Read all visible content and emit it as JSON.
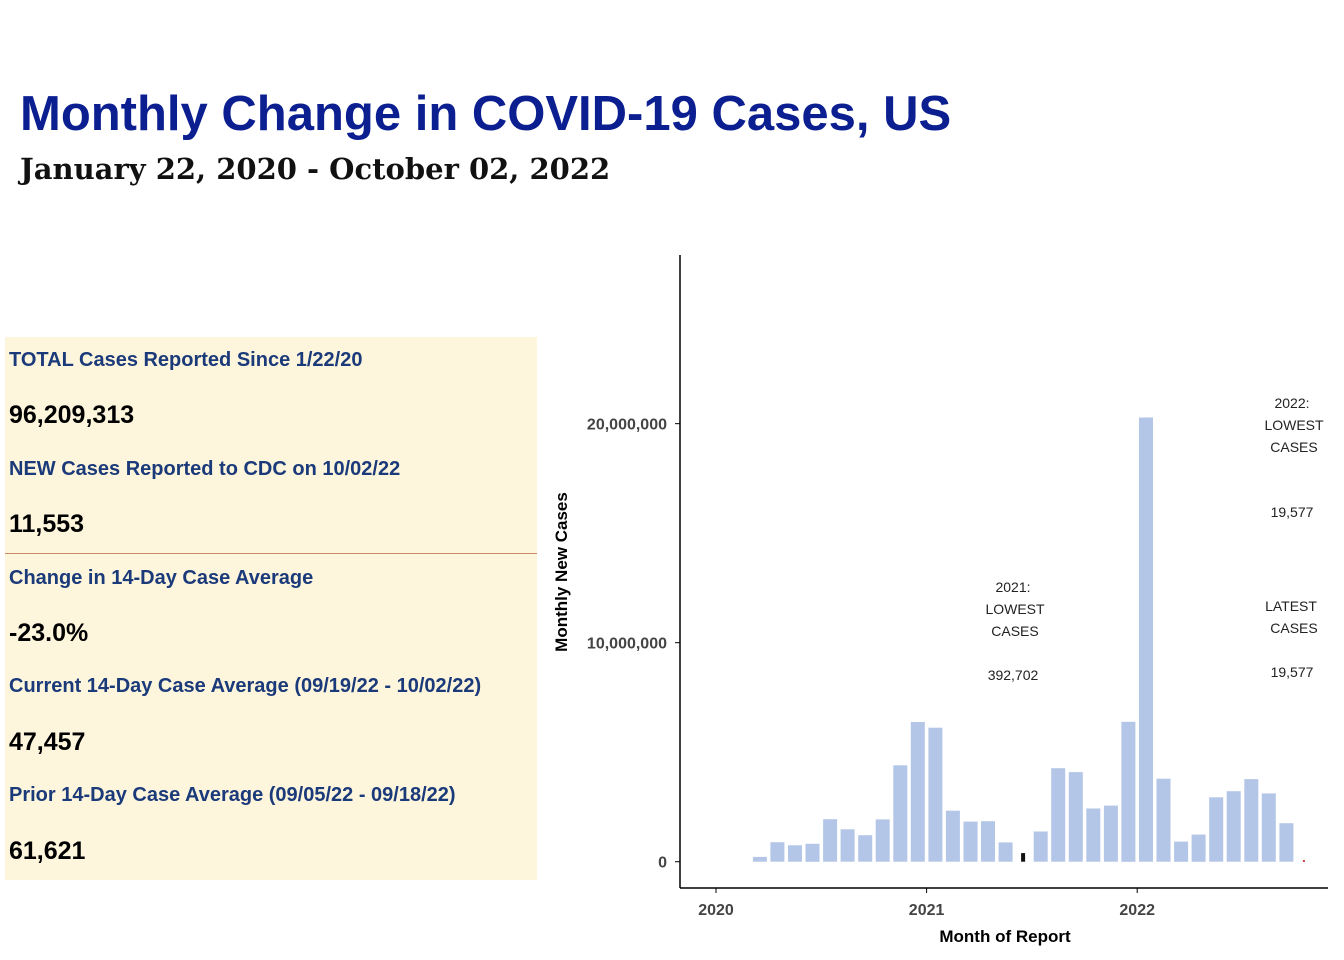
{
  "header": {
    "title": "Monthly Change in COVID-19 Cases, US",
    "subtitle": "January 22, 2020 - October 02, 2022"
  },
  "stats": {
    "total_label": "TOTAL Cases Reported Since 1/22/20",
    "total_value": "96,209,313",
    "new_label": "NEW Cases Reported to CDC on 10/02/22",
    "new_value": "11,553",
    "change_label": "Change in 14-Day Case Average",
    "change_value": "-23.0%",
    "current_label": "Current 14-Day Case Average (09/19/22 - 10/02/22)",
    "current_value": "47,457",
    "prior_label": "Prior 14-Day Case Average (09/05/22 - 09/18/22)",
    "prior_value": "61,621"
  },
  "chart_data": {
    "type": "bar",
    "xlabel": "Month of Report",
    "ylabel": "Monthly New Cases",
    "x_ticks": [
      "2020",
      "2021",
      "2022"
    ],
    "y_ticks": [
      0,
      10000000,
      20000000
    ],
    "y_tick_labels": [
      "0",
      "10,000,000",
      "20,000,000"
    ],
    "ylim": [
      -1200000,
      27700000
    ],
    "grid": false,
    "bar_color": "#b3c6e7",
    "highlight_color": "#111111",
    "latest_color": "#cc0000",
    "categories": [
      "2020-01",
      "2020-02",
      "2020-03",
      "2020-04",
      "2020-05",
      "2020-06",
      "2020-07",
      "2020-08",
      "2020-09",
      "2020-10",
      "2020-11",
      "2020-12",
      "2021-01",
      "2021-02",
      "2021-03",
      "2021-04",
      "2021-05",
      "2021-06",
      "2021-07",
      "2021-08",
      "2021-09",
      "2021-10",
      "2021-11",
      "2021-12",
      "2022-01",
      "2022-02",
      "2022-03",
      "2022-04",
      "2022-05",
      "2022-06",
      "2022-07",
      "2022-08",
      "2022-09",
      "2022-10"
    ],
    "values": [
      10,
      30,
      220000,
      890000,
      750000,
      820000,
      1940000,
      1480000,
      1210000,
      1930000,
      4400000,
      6380000,
      6120000,
      2330000,
      1830000,
      1850000,
      880000,
      392702,
      1380000,
      4270000,
      4090000,
      2430000,
      2560000,
      6390000,
      20280000,
      3790000,
      920000,
      1240000,
      2940000,
      3220000,
      3770000,
      3120000,
      1760000,
      19577
    ],
    "highlight_index": 17,
    "latest_index": 33,
    "annotations": [
      {
        "lines": [
          "2021:",
          "LOWEST",
          "CASES"
        ],
        "value": "392,702"
      },
      {
        "lines": [
          "2022:",
          "LOWEST",
          "CASES"
        ],
        "value": "19,577"
      },
      {
        "lines": [
          "LATEST",
          "CASES"
        ],
        "value": "19,577"
      }
    ]
  }
}
